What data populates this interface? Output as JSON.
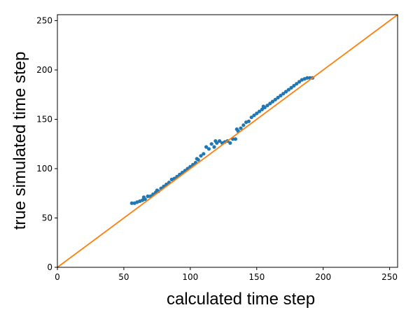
{
  "chart_data": {
    "type": "scatter",
    "title": "",
    "xlabel": "calculated time step",
    "ylabel": "true simulated time step",
    "xlim": [
      0,
      256
    ],
    "ylim": [
      0,
      256
    ],
    "xticks": [
      0,
      50,
      100,
      150,
      200,
      250
    ],
    "yticks": [
      0,
      50,
      100,
      150,
      200,
      250
    ],
    "grid": false,
    "colors": {
      "scatter": "#1f77b4",
      "identity": "#ff7f0e"
    },
    "series": [
      {
        "type": "scatter",
        "points": [
          [
            56,
            65
          ],
          [
            58,
            65
          ],
          [
            60,
            66
          ],
          [
            62,
            67
          ],
          [
            64,
            68
          ],
          [
            65,
            71
          ],
          [
            66,
            69
          ],
          [
            68,
            72
          ],
          [
            70,
            72
          ],
          [
            72,
            74
          ],
          [
            74,
            76
          ],
          [
            75,
            78
          ],
          [
            76,
            77
          ],
          [
            78,
            80
          ],
          [
            80,
            82
          ],
          [
            82,
            84
          ],
          [
            84,
            86
          ],
          [
            86,
            89
          ],
          [
            88,
            90
          ],
          [
            90,
            92
          ],
          [
            92,
            94
          ],
          [
            94,
            96
          ],
          [
            96,
            98
          ],
          [
            98,
            100
          ],
          [
            100,
            102
          ],
          [
            102,
            104
          ],
          [
            104,
            106
          ],
          [
            105,
            110
          ],
          [
            106,
            109
          ],
          [
            108,
            113
          ],
          [
            110,
            115
          ],
          [
            112,
            122
          ],
          [
            114,
            120
          ],
          [
            116,
            125
          ],
          [
            118,
            122
          ],
          [
            119,
            128
          ],
          [
            120,
            126
          ],
          [
            122,
            128
          ],
          [
            124,
            126
          ],
          [
            126,
            127
          ],
          [
            128,
            128
          ],
          [
            130,
            126
          ],
          [
            132,
            130
          ],
          [
            134,
            130
          ],
          [
            135,
            140
          ],
          [
            136,
            138
          ],
          [
            138,
            141
          ],
          [
            140,
            144
          ],
          [
            142,
            147
          ],
          [
            144,
            148
          ],
          [
            146,
            152
          ],
          [
            148,
            154
          ],
          [
            150,
            156
          ],
          [
            152,
            158
          ],
          [
            154,
            160
          ],
          [
            155,
            163
          ],
          [
            156,
            162
          ],
          [
            158,
            164
          ],
          [
            160,
            166
          ],
          [
            162,
            168
          ],
          [
            164,
            170
          ],
          [
            166,
            172
          ],
          [
            168,
            174
          ],
          [
            170,
            176
          ],
          [
            172,
            178
          ],
          [
            174,
            180
          ],
          [
            176,
            182
          ],
          [
            178,
            184
          ],
          [
            180,
            186
          ],
          [
            182,
            188
          ],
          [
            184,
            190
          ],
          [
            186,
            191
          ],
          [
            188,
            192
          ],
          [
            190,
            192
          ],
          [
            192,
            192
          ]
        ]
      },
      {
        "type": "line",
        "x": [
          0,
          256
        ],
        "y": [
          0,
          256
        ]
      }
    ]
  }
}
